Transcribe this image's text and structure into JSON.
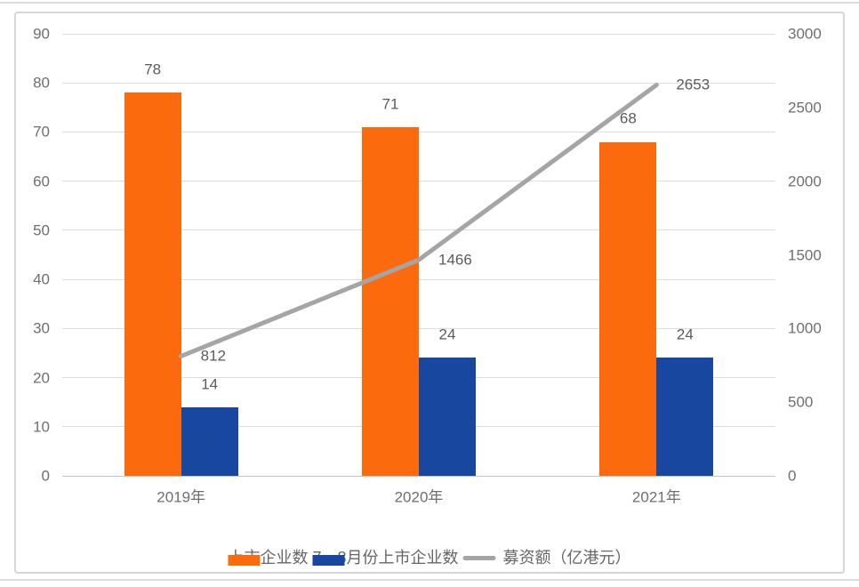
{
  "chart_data": {
    "type": "combo_bar_line",
    "title": "",
    "categories": [
      "2019年",
      "2020年",
      "2021年"
    ],
    "series": [
      {
        "name": "上市企业数",
        "type": "bar",
        "axis": "left",
        "color": "#fb6a0d",
        "values": [
          78,
          71,
          68
        ]
      },
      {
        "name": "7、8月份上市企业数",
        "type": "bar",
        "axis": "left",
        "color": "#17479e",
        "values": [
          14,
          24,
          24
        ]
      },
      {
        "name": "募资额（亿港元）",
        "type": "line",
        "axis": "right",
        "color": "#a5a5a5",
        "values": [
          812,
          1466,
          2653
        ]
      }
    ],
    "left_axis": {
      "min": 0,
      "max": 90,
      "step": 10,
      "ticks": [
        "0",
        "10",
        "20",
        "30",
        "40",
        "50",
        "60",
        "70",
        "80",
        "90"
      ]
    },
    "right_axis": {
      "min": 0,
      "max": 3000,
      "step": 500,
      "ticks": [
        "0",
        "500",
        "1000",
        "1500",
        "2000",
        "2500",
        "3000"
      ]
    },
    "grid": true,
    "data_labels": true,
    "legend_position": "bottom"
  }
}
